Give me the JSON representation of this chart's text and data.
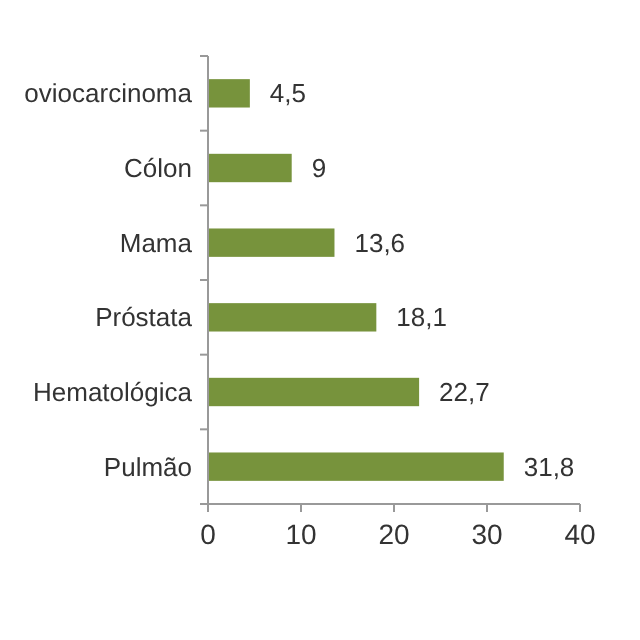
{
  "chart_data": {
    "type": "bar",
    "orientation": "horizontal",
    "categories": [
      "oviocarcinoma",
      "Cólon",
      "Mama",
      "Próstata",
      "Hematológica",
      "Pulmão"
    ],
    "values": [
      4.5,
      9,
      13.6,
      18.1,
      22.7,
      31.8
    ],
    "value_labels": [
      "4,5",
      "9",
      "13,6",
      "18,1",
      "22,7",
      "31,8"
    ],
    "color": "#77933c",
    "xlim": [
      0,
      40
    ],
    "xticks": [
      0,
      10,
      20,
      30,
      40
    ]
  }
}
